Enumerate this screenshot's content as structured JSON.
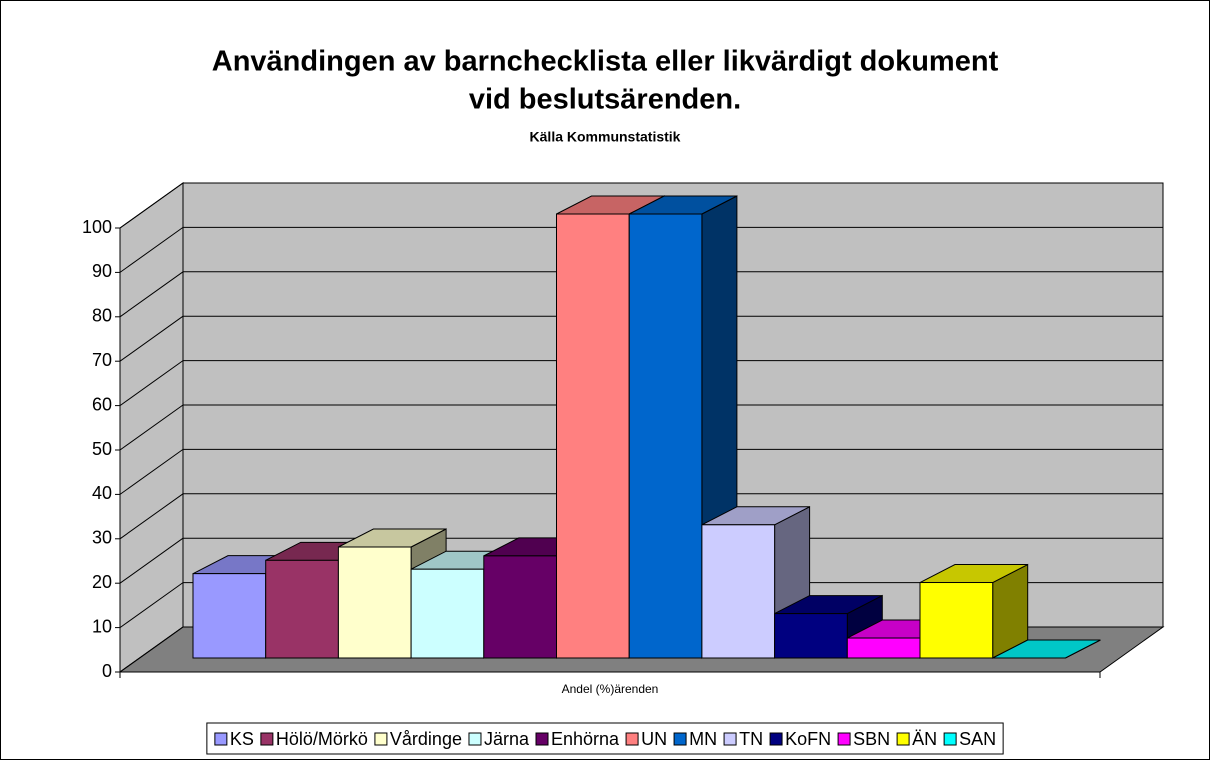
{
  "chart_data": {
    "type": "bar",
    "title": [
      "Användingen av barnchecklista eller likvärdigt dokument",
      "vid beslutsärenden."
    ],
    "subtitle": "Källa Kommunstatistik",
    "x_label": "Andel (%)ärenden",
    "ylim": [
      0,
      100
    ],
    "yticks": [
      0,
      10,
      20,
      30,
      40,
      50,
      60,
      70,
      80,
      90,
      100
    ],
    "grid": true,
    "legend": "bottom",
    "series": [
      {
        "name": "KS",
        "color": "#9999ff",
        "values": [
          19
        ]
      },
      {
        "name": "Hölö/Mörkö",
        "color": "#993366",
        "values": [
          22
        ]
      },
      {
        "name": "Vårdinge",
        "color": "#ffffcc",
        "values": [
          25
        ]
      },
      {
        "name": "Järna",
        "color": "#ccffff",
        "values": [
          20
        ]
      },
      {
        "name": "Enhörna",
        "color": "#660066",
        "values": [
          23
        ]
      },
      {
        "name": "UN",
        "color": "#ff8080",
        "values": [
          100
        ]
      },
      {
        "name": "MN",
        "color": "#0066cc",
        "values": [
          100
        ]
      },
      {
        "name": "TN",
        "color": "#ccccff",
        "values": [
          30
        ]
      },
      {
        "name": "KoFN",
        "color": "#000080",
        "values": [
          10
        ]
      },
      {
        "name": "SBN",
        "color": "#ff00ff",
        "values": [
          4.5
        ]
      },
      {
        "name": "ÄN",
        "color": "#ffff00",
        "values": [
          17
        ]
      },
      {
        "name": "SAN",
        "color": "#00ffff",
        "values": [
          0
        ]
      }
    ]
  }
}
